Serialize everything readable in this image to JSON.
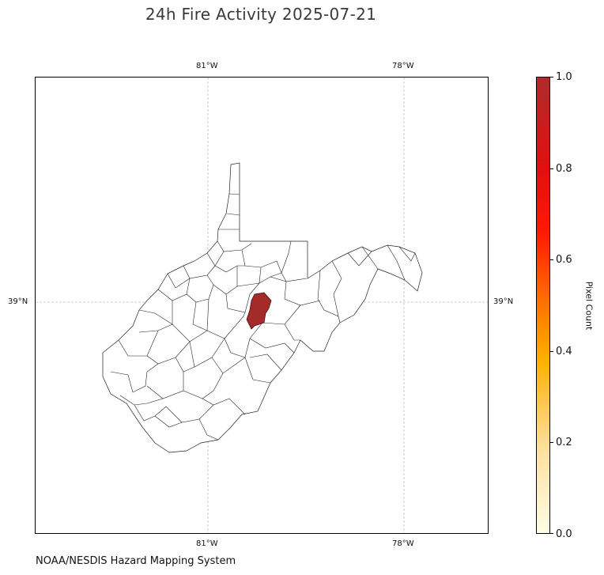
{
  "title": "24h Fire Activity 2025-07-21",
  "credit": "NOAA/NESDIS Hazard Mapping System",
  "map": {
    "region": "West Virginia counties",
    "gridlines": true,
    "longitude_ticks": [
      "81°W",
      "78°W"
    ],
    "latitude_ticks": [
      "39°N"
    ],
    "highlighted_county_color": "#a52a2a",
    "county_border_color": "#000000"
  },
  "colorbar": {
    "label": "Pixel Count",
    "ticks": [
      "0.0",
      "0.2",
      "0.4",
      "0.6",
      "0.8",
      "1.0"
    ],
    "range": [
      0,
      1
    ],
    "colormap": [
      "#fffde6",
      "#ffb000",
      "#ff1a00",
      "#b22a2a"
    ]
  }
}
